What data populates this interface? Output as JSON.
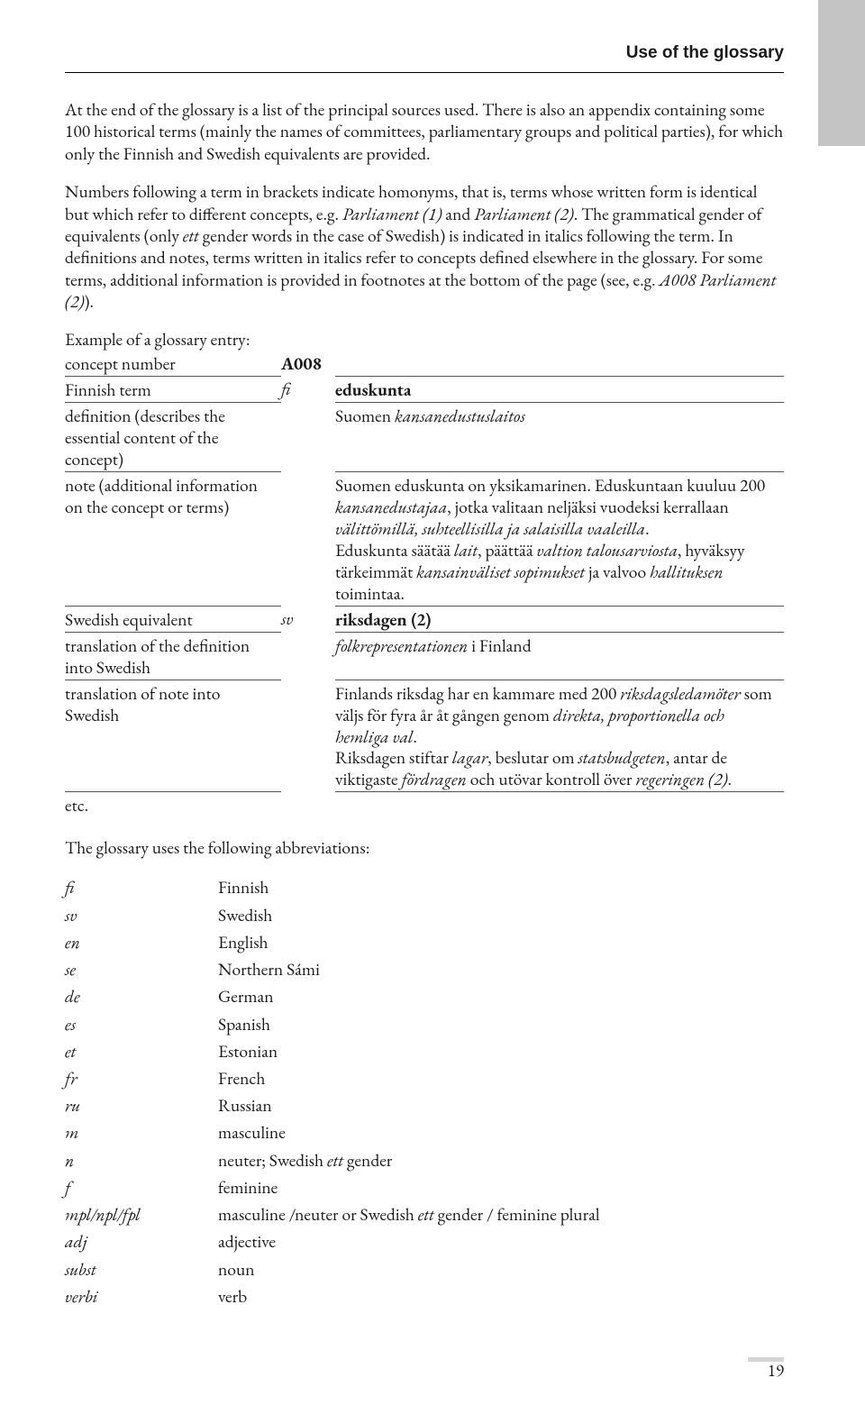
{
  "running_head": "Use of the glossary",
  "paragraphs": {
    "p1_parts": [
      {
        "t": "At the end of the glossary is a list of the principal sources used. There is also an appendix containing some 100 historical terms (mainly the names of committees, parliamentary groups and political parties), for which only the Finnish and Swedish equivalents are provided."
      }
    ],
    "p2_parts": [
      {
        "t": "Numbers following a term in brackets indicate homonyms, that is, terms whose written form is identical but which refer to different concepts, e.g. "
      },
      {
        "t": "Parliament (1)",
        "i": true
      },
      {
        "t": " and "
      },
      {
        "t": "Parliament (2)",
        "i": true
      },
      {
        "t": ". The grammatical gender of equivalents (only "
      },
      {
        "t": "ett",
        "i": true
      },
      {
        "t": " gender words in the case of Swedish) is indicated in italics following the term. In definitions and notes, terms written in italics refer to concepts defined elsewhere in the glossary. For some terms, additional information is provided in footnotes at the bottom of the page (see, e.g. "
      },
      {
        "t": "A008 Parliament (2)",
        "i": true
      },
      {
        "t": ")."
      }
    ],
    "example_heading": "Example of a glossary entry:",
    "abbrev_heading": "The glossary uses the following abbreviations:"
  },
  "glossary_example": {
    "rows": [
      {
        "label": "concept number",
        "lang": "",
        "content_parts": [
          {
            "t": "A008",
            "b": true
          }
        ],
        "content_in_col1": true,
        "border": true
      },
      {
        "label": "Finnish term",
        "lang": "fi",
        "content_parts": [
          {
            "t": "eduskunta",
            "b": true
          }
        ],
        "border": true
      },
      {
        "label": "definition (describes the essential content of the concept)",
        "lang": "",
        "content_parts": [
          {
            "t": "Suomen "
          },
          {
            "t": "kansanedustuslaitos",
            "i": true
          }
        ],
        "border": true
      },
      {
        "label": "note (additional information on the concept or terms)",
        "lang": "",
        "content_parts": [
          {
            "t": "Suomen eduskunta on yksikamarinen. Eduskuntaan kuuluu 200 "
          },
          {
            "t": "kansanedustajaa",
            "i": true
          },
          {
            "t": ", jotka valitaan neljäksi vuodeksi kerrallaan "
          },
          {
            "t": "välittömillä, suhteellisilla ja salaisilla vaaleilla",
            "i": true
          },
          {
            "t": "."
          },
          {
            "t": "\nEduskunta säätää "
          },
          {
            "t": "lait",
            "i": true
          },
          {
            "t": ", päättää "
          },
          {
            "t": "valtion talousarviosta",
            "i": true
          },
          {
            "t": ", hyväksyy tärkeimmät "
          },
          {
            "t": "kansainväliset sopimukset",
            "i": true
          },
          {
            "t": " ja valvoo "
          },
          {
            "t": "hallituksen",
            "i": true
          },
          {
            "t": " toimintaa."
          }
        ],
        "border": true
      },
      {
        "label": "Swedish equivalent",
        "lang": "sv",
        "content_parts": [
          {
            "t": "riksdagen (2)",
            "b": true
          }
        ],
        "border": true
      },
      {
        "label": "translation of the definition into Swedish",
        "lang": "",
        "content_parts": [
          {
            "t": "folkrepresentationen",
            "i": true
          },
          {
            "t": " i Finland"
          }
        ],
        "border": true
      },
      {
        "label": "translation of note into Swedish",
        "lang": "",
        "content_parts": [
          {
            "t": "Finlands riksdag har en kammare med 200 "
          },
          {
            "t": "riksdagsledamöter",
            "i": true
          },
          {
            "t": " som väljs för fyra år åt gången genom "
          },
          {
            "t": "direkta, proportionella och hemliga val",
            "i": true
          },
          {
            "t": "."
          },
          {
            "t": "\nRiksdagen stiftar "
          },
          {
            "t": "lagar",
            "i": true
          },
          {
            "t": ", beslutar om "
          },
          {
            "t": "statsbudgeten",
            "i": true
          },
          {
            "t": ", antar de viktigaste "
          },
          {
            "t": "fördragen",
            "i": true
          },
          {
            "t": " och utövar kontroll över "
          },
          {
            "t": "regeringen (2)",
            "i": true
          },
          {
            "t": "."
          }
        ],
        "border": true
      },
      {
        "label": "etc.",
        "lang": "",
        "content_parts": [],
        "border": false
      }
    ]
  },
  "abbreviations": [
    {
      "abbr": "fi",
      "meaning": "Finnish"
    },
    {
      "abbr": "sv",
      "meaning": "Swedish"
    },
    {
      "abbr": "en",
      "meaning": "English"
    },
    {
      "abbr": "se",
      "meaning": "Northern Sámi"
    },
    {
      "abbr": "de",
      "meaning": "German"
    },
    {
      "abbr": "es",
      "meaning": "Spanish"
    },
    {
      "abbr": "et",
      "meaning": "Estonian"
    },
    {
      "abbr": "fr",
      "meaning": "French"
    },
    {
      "abbr": "ru",
      "meaning": "Russian"
    },
    {
      "abbr": "m",
      "meaning": "masculine"
    },
    {
      "abbr": "n",
      "meaning_parts": [
        {
          "t": "neuter; Swedish "
        },
        {
          "t": "ett",
          "i": true
        },
        {
          "t": " gender"
        }
      ]
    },
    {
      "abbr": "f",
      "meaning": "feminine"
    },
    {
      "abbr": "mpl/npl/fpl",
      "meaning_parts": [
        {
          "t": "masculine /neuter or Swedish "
        },
        {
          "t": "ett",
          "i": true
        },
        {
          "t": " gender / feminine plural"
        }
      ]
    },
    {
      "abbr": "adj",
      "meaning": "adjective"
    },
    {
      "abbr": "subst",
      "meaning": "noun"
    },
    {
      "abbr": "verbi",
      "meaning": "verb"
    }
  ],
  "page_number": "19"
}
